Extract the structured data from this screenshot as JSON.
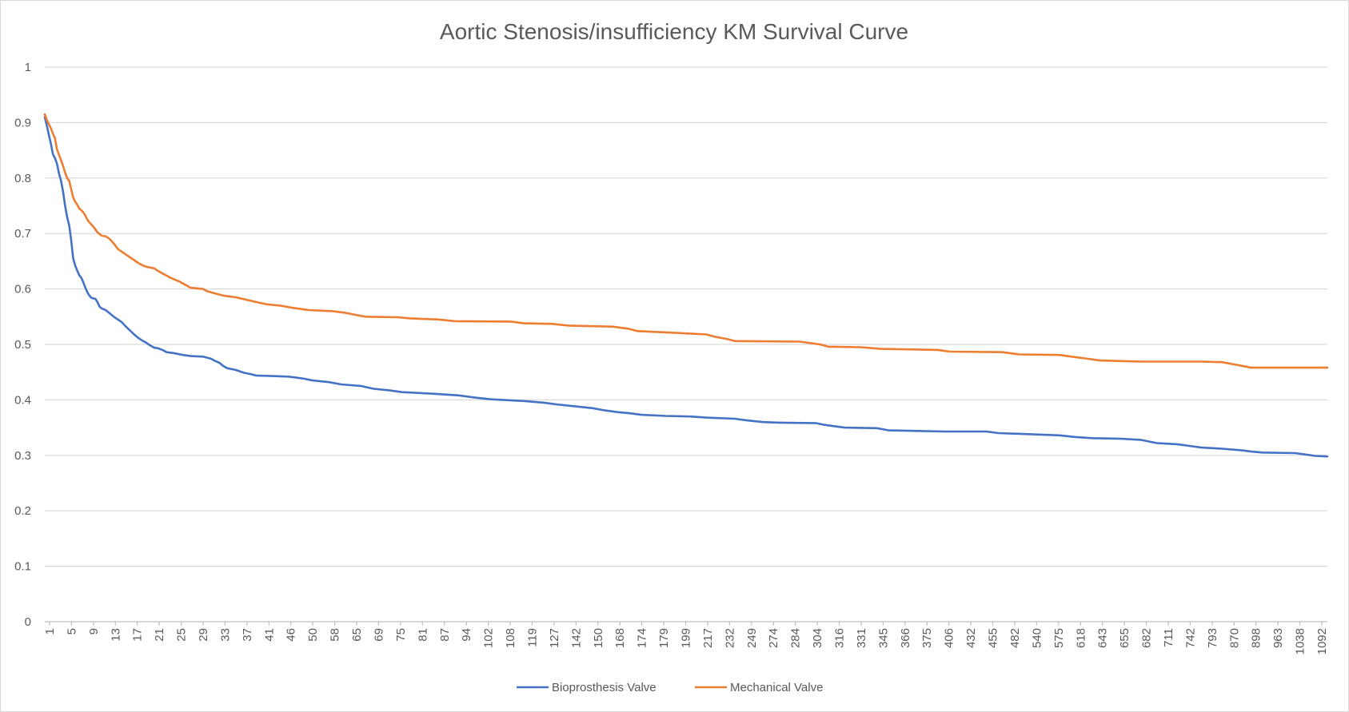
{
  "chart_data": {
    "type": "line",
    "title": "Aortic Stenosis/insufficiency KM Survival Curve",
    "xlabel": "",
    "ylabel": "",
    "ylim": [
      0,
      1
    ],
    "yticks": [
      "0",
      "0.1",
      "0.2",
      "0.3",
      "0.4",
      "0.5",
      "0.6",
      "0.7",
      "0.8",
      "0.9",
      "1"
    ],
    "x_tick_labels": [
      "1",
      "5",
      "9",
      "13",
      "17",
      "21",
      "25",
      "29",
      "33",
      "37",
      "41",
      "46",
      "50",
      "58",
      "65",
      "69",
      "75",
      "81",
      "87",
      "94",
      "102",
      "108",
      "119",
      "127",
      "142",
      "150",
      "168",
      "174",
      "179",
      "199",
      "217",
      "232",
      "249",
      "274",
      "284",
      "304",
      "316",
      "331",
      "345",
      "366",
      "375",
      "406",
      "432",
      "455",
      "482",
      "540",
      "575",
      "618",
      "643",
      "655",
      "682",
      "711",
      "742",
      "793",
      "870",
      "898",
      "963",
      "1038",
      "1092"
    ],
    "legend_position": "bottom",
    "grid": true,
    "series": [
      {
        "name": "Bioprosthesis Valve",
        "color": "#4472C4",
        "points": [
          [
            0,
            0.91
          ],
          [
            1,
            0.895
          ],
          [
            2,
            0.878
          ],
          [
            3,
            0.862
          ],
          [
            4,
            0.843
          ],
          [
            5,
            0.836
          ],
          [
            6,
            0.826
          ],
          [
            7,
            0.808
          ],
          [
            8,
            0.795
          ],
          [
            9,
            0.776
          ],
          [
            10,
            0.75
          ],
          [
            11,
            0.73
          ],
          [
            12,
            0.715
          ],
          [
            13,
            0.688
          ],
          [
            14,
            0.655
          ],
          [
            15,
            0.642
          ],
          [
            16,
            0.633
          ],
          [
            17,
            0.625
          ],
          [
            18,
            0.62
          ],
          [
            19,
            0.612
          ],
          [
            20,
            0.602
          ],
          [
            21,
            0.594
          ],
          [
            22,
            0.588
          ],
          [
            23,
            0.584
          ],
          [
            24,
            0.583
          ],
          [
            25,
            0.582
          ],
          [
            26,
            0.576
          ],
          [
            27,
            0.568
          ],
          [
            28,
            0.565
          ],
          [
            30,
            0.562
          ],
          [
            32,
            0.556
          ],
          [
            34,
            0.55
          ],
          [
            36,
            0.545
          ],
          [
            38,
            0.54
          ],
          [
            40,
            0.532
          ],
          [
            42,
            0.525
          ],
          [
            44,
            0.518
          ],
          [
            46,
            0.512
          ],
          [
            48,
            0.507
          ],
          [
            50,
            0.503
          ],
          [
            52,
            0.498
          ],
          [
            54,
            0.494
          ],
          [
            56,
            0.493
          ],
          [
            58,
            0.49
          ],
          [
            60,
            0.486
          ],
          [
            64,
            0.484
          ],
          [
            68,
            0.481
          ],
          [
            72,
            0.479
          ],
          [
            78,
            0.478
          ],
          [
            82,
            0.474
          ],
          [
            84,
            0.47
          ],
          [
            86,
            0.467
          ],
          [
            88,
            0.461
          ],
          [
            90,
            0.457
          ],
          [
            94,
            0.454
          ],
          [
            98,
            0.449
          ],
          [
            102,
            0.446
          ],
          [
            104,
            0.444
          ],
          [
            112,
            0.443
          ],
          [
            120,
            0.442
          ],
          [
            124,
            0.44
          ],
          [
            128,
            0.438
          ],
          [
            132,
            0.435
          ],
          [
            140,
            0.432
          ],
          [
            146,
            0.428
          ],
          [
            156,
            0.425
          ],
          [
            162,
            0.42
          ],
          [
            170,
            0.417
          ],
          [
            176,
            0.414
          ],
          [
            192,
            0.411
          ],
          [
            204,
            0.408
          ],
          [
            212,
            0.404
          ],
          [
            220,
            0.401
          ],
          [
            236,
            0.398
          ],
          [
            246,
            0.395
          ],
          [
            252,
            0.392
          ],
          [
            262,
            0.388
          ],
          [
            270,
            0.385
          ],
          [
            276,
            0.381
          ],
          [
            282,
            0.378
          ],
          [
            288,
            0.376
          ],
          [
            294,
            0.373
          ],
          [
            306,
            0.371
          ],
          [
            318,
            0.37
          ],
          [
            326,
            0.368
          ],
          [
            340,
            0.366
          ],
          [
            346,
            0.363
          ],
          [
            354,
            0.36
          ],
          [
            362,
            0.359
          ],
          [
            380,
            0.358
          ],
          [
            384,
            0.355
          ],
          [
            390,
            0.352
          ],
          [
            394,
            0.35
          ],
          [
            410,
            0.349
          ],
          [
            416,
            0.345
          ],
          [
            430,
            0.344
          ],
          [
            444,
            0.343
          ],
          [
            464,
            0.343
          ],
          [
            470,
            0.34
          ],
          [
            486,
            0.338
          ],
          [
            500,
            0.336
          ],
          [
            508,
            0.333
          ],
          [
            516,
            0.331
          ],
          [
            530,
            0.33
          ],
          [
            540,
            0.328
          ],
          [
            544,
            0.325
          ],
          [
            548,
            0.322
          ],
          [
            558,
            0.32
          ],
          [
            564,
            0.317
          ],
          [
            570,
            0.314
          ],
          [
            580,
            0.312
          ],
          [
            590,
            0.309
          ],
          [
            594,
            0.307
          ],
          [
            600,
            0.305
          ],
          [
            616,
            0.304
          ],
          [
            622,
            0.301
          ],
          [
            626,
            0.299
          ],
          [
            632,
            0.298
          ]
        ]
      },
      {
        "name": "Mechanical Valve",
        "color": "#ED7D31",
        "points": [
          [
            0,
            0.915
          ],
          [
            1,
            0.905
          ],
          [
            2,
            0.897
          ],
          [
            3,
            0.89
          ],
          [
            4,
            0.88
          ],
          [
            5,
            0.872
          ],
          [
            6,
            0.852
          ],
          [
            7,
            0.842
          ],
          [
            8,
            0.832
          ],
          [
            9,
            0.822
          ],
          [
            10,
            0.81
          ],
          [
            11,
            0.8
          ],
          [
            12,
            0.795
          ],
          [
            13,
            0.78
          ],
          [
            14,
            0.765
          ],
          [
            15,
            0.757
          ],
          [
            16,
            0.752
          ],
          [
            17,
            0.745
          ],
          [
            18,
            0.742
          ],
          [
            19,
            0.738
          ],
          [
            20,
            0.732
          ],
          [
            21,
            0.725
          ],
          [
            22,
            0.72
          ],
          [
            23,
            0.716
          ],
          [
            24,
            0.712
          ],
          [
            25,
            0.707
          ],
          [
            26,
            0.702
          ],
          [
            27,
            0.699
          ],
          [
            28,
            0.696
          ],
          [
            30,
            0.695
          ],
          [
            32,
            0.69
          ],
          [
            34,
            0.682
          ],
          [
            36,
            0.672
          ],
          [
            38,
            0.667
          ],
          [
            40,
            0.662
          ],
          [
            42,
            0.657
          ],
          [
            44,
            0.652
          ],
          [
            46,
            0.647
          ],
          [
            48,
            0.643
          ],
          [
            50,
            0.64
          ],
          [
            54,
            0.637
          ],
          [
            56,
            0.632
          ],
          [
            58,
            0.628
          ],
          [
            60,
            0.624
          ],
          [
            62,
            0.62
          ],
          [
            64,
            0.617
          ],
          [
            66,
            0.614
          ],
          [
            68,
            0.61
          ],
          [
            70,
            0.606
          ],
          [
            72,
            0.602
          ],
          [
            78,
            0.6
          ],
          [
            80,
            0.596
          ],
          [
            84,
            0.592
          ],
          [
            88,
            0.588
          ],
          [
            94,
            0.585
          ],
          [
            100,
            0.58
          ],
          [
            106,
            0.575
          ],
          [
            110,
            0.572
          ],
          [
            116,
            0.57
          ],
          [
            122,
            0.566
          ],
          [
            130,
            0.562
          ],
          [
            142,
            0.56
          ],
          [
            148,
            0.557
          ],
          [
            152,
            0.554
          ],
          [
            158,
            0.55
          ],
          [
            174,
            0.549
          ],
          [
            180,
            0.547
          ],
          [
            194,
            0.545
          ],
          [
            202,
            0.542
          ],
          [
            230,
            0.541
          ],
          [
            236,
            0.538
          ],
          [
            250,
            0.537
          ],
          [
            258,
            0.534
          ],
          [
            280,
            0.532
          ],
          [
            288,
            0.528
          ],
          [
            292,
            0.524
          ],
          [
            310,
            0.521
          ],
          [
            326,
            0.518
          ],
          [
            330,
            0.514
          ],
          [
            336,
            0.51
          ],
          [
            340,
            0.506
          ],
          [
            372,
            0.505
          ],
          [
            382,
            0.5
          ],
          [
            386,
            0.496
          ],
          [
            402,
            0.495
          ],
          [
            412,
            0.492
          ],
          [
            440,
            0.49
          ],
          [
            446,
            0.487
          ],
          [
            472,
            0.486
          ],
          [
            480,
            0.482
          ],
          [
            500,
            0.481
          ],
          [
            506,
            0.478
          ],
          [
            514,
            0.474
          ],
          [
            520,
            0.471
          ],
          [
            540,
            0.469
          ],
          [
            570,
            0.469
          ],
          [
            580,
            0.468
          ],
          [
            586,
            0.464
          ],
          [
            592,
            0.46
          ],
          [
            594,
            0.458
          ],
          [
            632,
            0.458
          ]
        ]
      }
    ]
  }
}
